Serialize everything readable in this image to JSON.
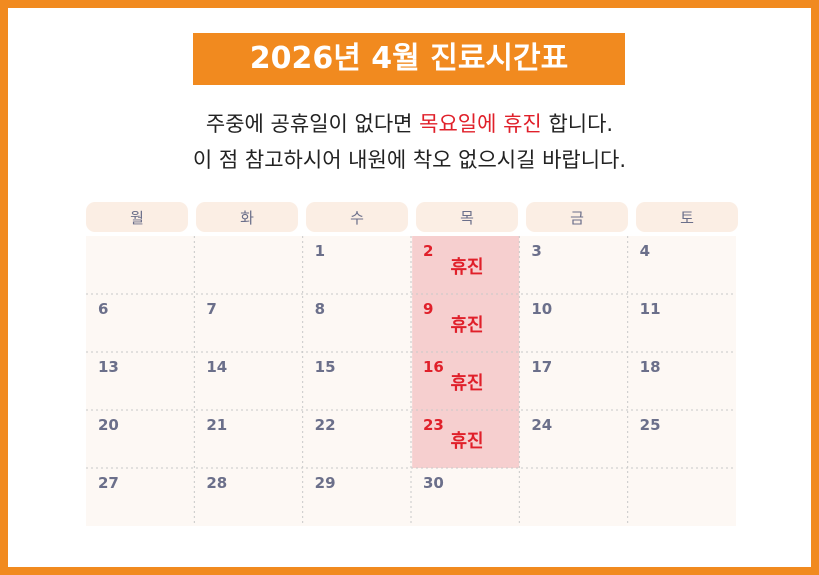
{
  "title": "2026년 4월 진료시간표",
  "notice": {
    "line1_before": "주중에 공휴일이 없다면 ",
    "line1_highlight": "목요일에 휴진",
    "line1_after": " 합니다.",
    "line2": "이 점 참고하시어 내원에 착오 없으시길 바랍니다."
  },
  "calendar": {
    "weekdays": [
      "월",
      "화",
      "수",
      "목",
      "금",
      "토"
    ],
    "weeks": [
      [
        null,
        null,
        {
          "day": 1
        },
        {
          "day": 2,
          "note": "휴진"
        },
        {
          "day": 3
        },
        {
          "day": 4
        }
      ],
      [
        {
          "day": 6
        },
        {
          "day": 7
        },
        {
          "day": 8
        },
        {
          "day": 9,
          "note": "휴진"
        },
        {
          "day": 10
        },
        {
          "day": 11
        }
      ],
      [
        {
          "day": 13
        },
        {
          "day": 14
        },
        {
          "day": 15
        },
        {
          "day": 16,
          "note": "휴진"
        },
        {
          "day": 17
        },
        {
          "day": 18
        }
      ],
      [
        {
          "day": 20
        },
        {
          "day": 21
        },
        {
          "day": 22
        },
        {
          "day": 23,
          "note": "휴진"
        },
        {
          "day": 24
        },
        {
          "day": 25
        }
      ],
      [
        {
          "day": 27
        },
        {
          "day": 28
        },
        {
          "day": 29
        },
        {
          "day": 30
        },
        null,
        null
      ]
    ]
  }
}
